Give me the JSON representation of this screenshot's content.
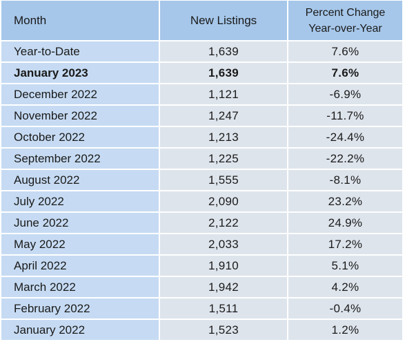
{
  "table": {
    "headers": {
      "month": "Month",
      "listings": "New Listings",
      "pct_line1": "Percent Change",
      "pct_line2": "Year-over-Year"
    },
    "rows": [
      {
        "month": "Year-to-Date",
        "listings": "1,639",
        "pct": "7.6%"
      },
      {
        "month": "January 2023",
        "listings": "1,639",
        "pct": "7.6%"
      },
      {
        "month": "December 2022",
        "listings": "1,121",
        "pct": "-6.9%"
      },
      {
        "month": "November 2022",
        "listings": "1,247",
        "pct": "-11.7%"
      },
      {
        "month": "October 2022",
        "listings": "1,213",
        "pct": "-24.4%"
      },
      {
        "month": "September 2022",
        "listings": "1,225",
        "pct": "-22.2%"
      },
      {
        "month": "August 2022",
        "listings": "1,555",
        "pct": "-8.1%"
      },
      {
        "month": "July 2022",
        "listings": "2,090",
        "pct": "23.2%"
      },
      {
        "month": "June 2022",
        "listings": "2,122",
        "pct": "24.9%"
      },
      {
        "month": "May 2022",
        "listings": "2,033",
        "pct": "17.2%"
      },
      {
        "month": "April 2022",
        "listings": "1,910",
        "pct": "5.1%"
      },
      {
        "month": "March 2022",
        "listings": "1,942",
        "pct": "4.2%"
      },
      {
        "month": "February 2022",
        "listings": "1,511",
        "pct": "-0.4%"
      },
      {
        "month": "January 2022",
        "listings": "1,523",
        "pct": "1.2%"
      }
    ]
  },
  "colors": {
    "header_bg": "#a6c7ea",
    "month_col_bg": "#c6dbf3",
    "value_col_bg": "#dde4ec"
  }
}
